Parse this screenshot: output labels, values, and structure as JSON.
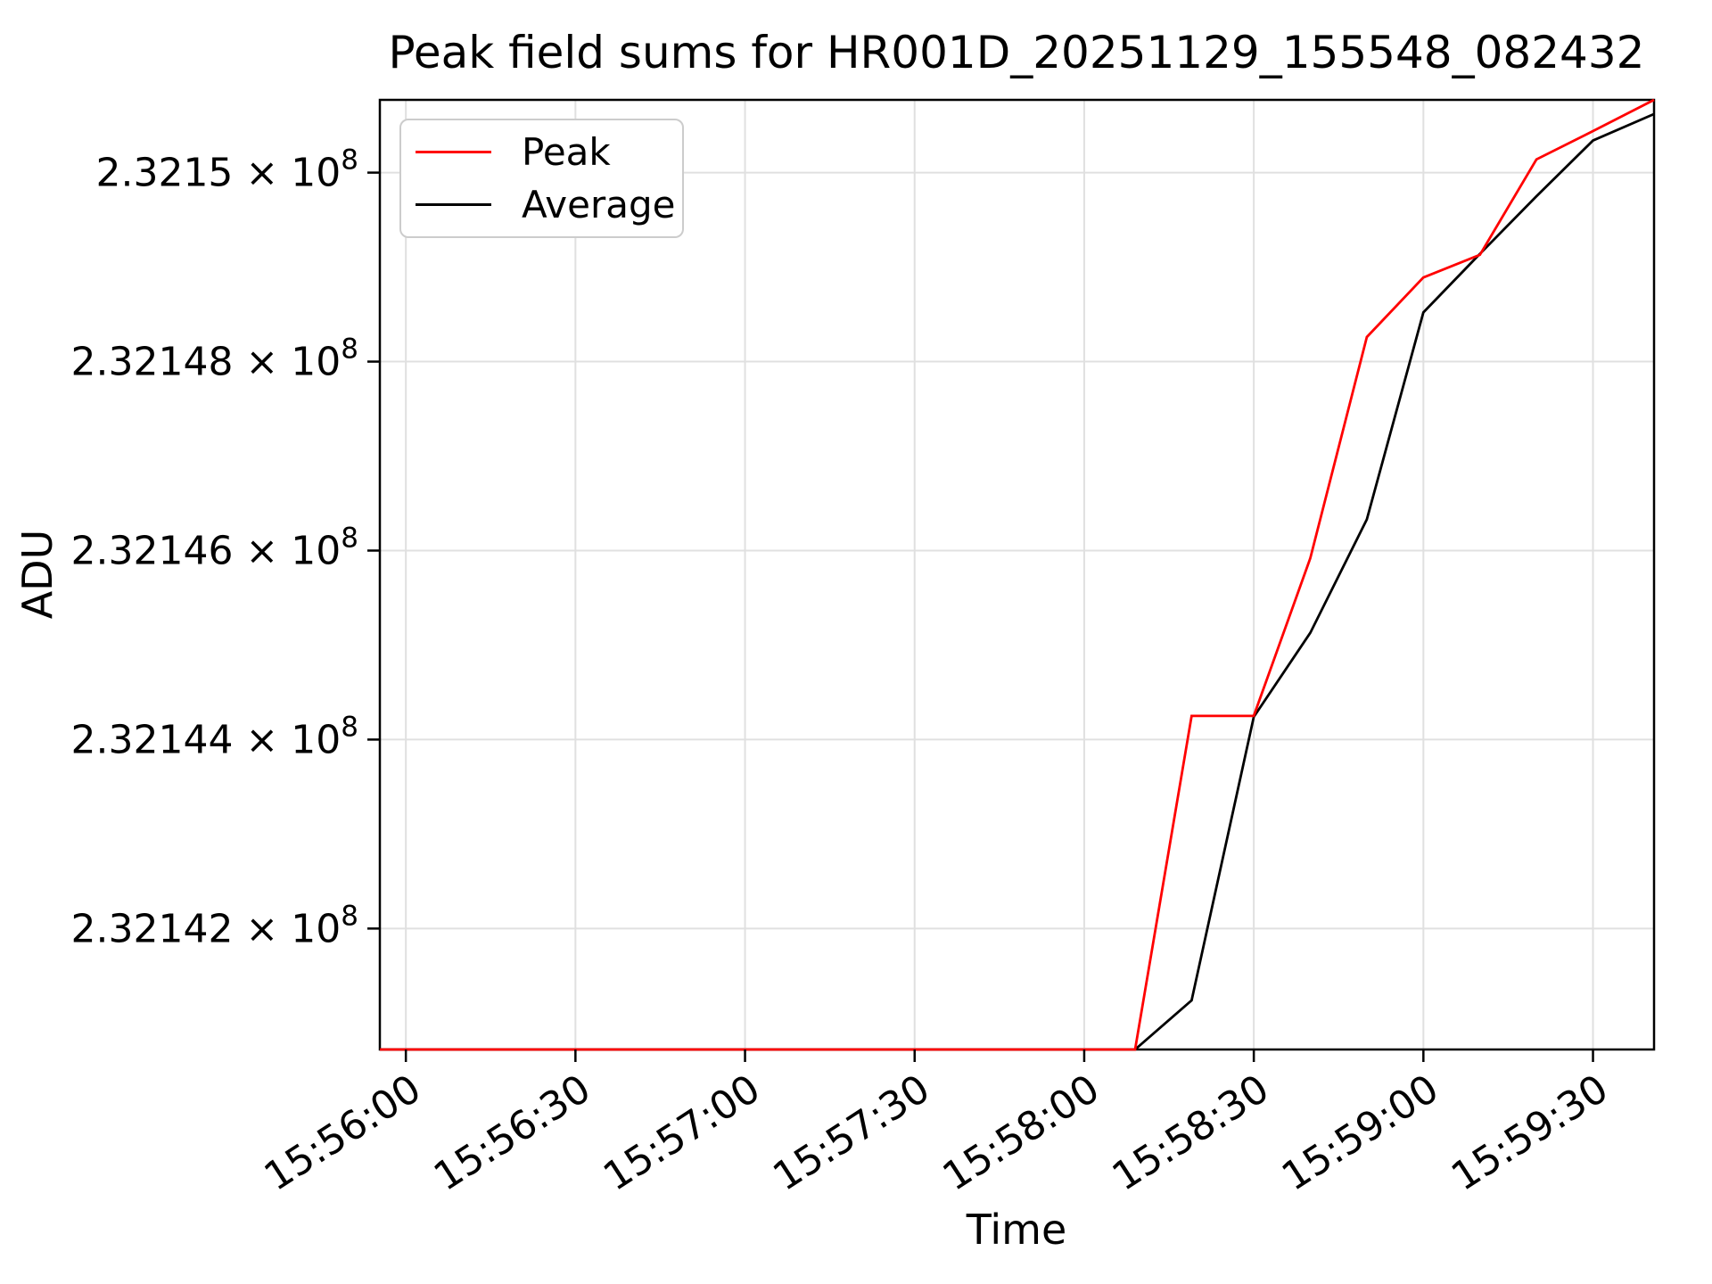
{
  "figure": {
    "background_color": "#ffffff",
    "text_color": "#000000"
  },
  "chart_data": {
    "type": "line",
    "title": "Peak field sums for HR001D_20251129_155548_082432",
    "xlabel": "Time",
    "ylabel": "ADU",
    "grid": true,
    "grid_color": "#e0e0e0",
    "spine_color": "#000000",
    "legend": {
      "position": "upper left",
      "border_color": "#cccccc",
      "entries": [
        "Peak",
        "Average"
      ]
    },
    "x_axis": {
      "t0_label": "15:56:00",
      "t_min_seconds": -4.6,
      "t_max_seconds": 220.8,
      "min_label": "15:55:56",
      "max_label": "15:59:41",
      "ticks": [
        {
          "label": "15:56:00",
          "t": 0
        },
        {
          "label": "15:56:30",
          "t": 30
        },
        {
          "label": "15:57:00",
          "t": 60
        },
        {
          "label": "15:57:30",
          "t": 90
        },
        {
          "label": "15:58:00",
          "t": 120
        },
        {
          "label": "15:58:30",
          "t": 150
        },
        {
          "label": "15:59:00",
          "t": 180
        },
        {
          "label": "15:59:30",
          "t": 210
        }
      ],
      "tick_label_rotation_deg": 33
    },
    "y_axis": {
      "unit": "ADU",
      "min": 232140720,
      "max": 232150770,
      "ticks": [
        {
          "mantissa": "2.32142 × 10",
          "exp": "8",
          "value": 232142000
        },
        {
          "mantissa": "2.32144 × 10",
          "exp": "8",
          "value": 232144000
        },
        {
          "mantissa": "2.32146 × 10",
          "exp": "8",
          "value": 232146000
        },
        {
          "mantissa": "2.32148 × 10",
          "exp": "8",
          "value": 232148000
        },
        {
          "mantissa": "2.3215 × 10",
          "exp": "8",
          "value": 232150000
        }
      ]
    },
    "series": [
      {
        "name": "Average",
        "color": "#000000",
        "points": [
          {
            "time": "15:55:56",
            "t": -4.6,
            "v": 232140720
          },
          {
            "time": "15:58:09",
            "t": 129,
            "v": 232140720
          },
          {
            "time": "15:58:19",
            "t": 139,
            "v": 232141240
          },
          {
            "time": "15:58:30",
            "t": 150,
            "v": 232144240
          },
          {
            "time": "15:58:40",
            "t": 160,
            "v": 232145130
          },
          {
            "time": "15:58:50",
            "t": 170,
            "v": 232146330
          },
          {
            "time": "15:59:00",
            "t": 180,
            "v": 232148520
          },
          {
            "time": "15:59:10",
            "t": 190,
            "v": 232149140
          },
          {
            "time": "15:59:20",
            "t": 200,
            "v": 232149750
          },
          {
            "time": "15:59:30",
            "t": 210,
            "v": 232150340
          },
          {
            "time": "15:59:41",
            "t": 220.8,
            "v": 232150620
          }
        ]
      },
      {
        "name": "Peak",
        "color": "#ff0000",
        "points": [
          {
            "time": "15:55:56",
            "t": -4.6,
            "v": 232140720
          },
          {
            "time": "15:58:09",
            "t": 129,
            "v": 232140720
          },
          {
            "time": "15:58:19",
            "t": 139,
            "v": 232144250
          },
          {
            "time": "15:58:30",
            "t": 150,
            "v": 232144250
          },
          {
            "time": "15:58:40",
            "t": 160,
            "v": 232145920
          },
          {
            "time": "15:58:50",
            "t": 170,
            "v": 232148260
          },
          {
            "time": "15:59:00",
            "t": 180,
            "v": 232148890
          },
          {
            "time": "15:59:10",
            "t": 190,
            "v": 232149130
          },
          {
            "time": "15:59:20",
            "t": 200,
            "v": 232150140
          },
          {
            "time": "15:59:30",
            "t": 210,
            "v": 232150440
          },
          {
            "time": "15:59:41",
            "t": 220.8,
            "v": 232150770
          }
        ]
      }
    ]
  }
}
